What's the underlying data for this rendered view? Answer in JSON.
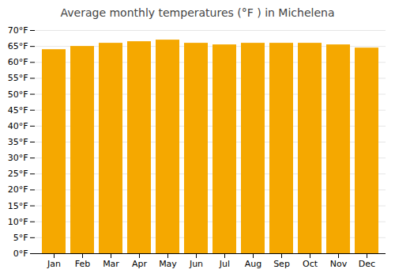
{
  "chart_data": {
    "type": "bar",
    "title": "Average monthly temperatures (°F ) in Michelena",
    "categories": [
      "Jan",
      "Feb",
      "Mar",
      "Apr",
      "May",
      "Jun",
      "Jul",
      "Aug",
      "Sep",
      "Oct",
      "Nov",
      "Dec"
    ],
    "values": [
      64,
      65,
      66,
      66.5,
      67,
      66,
      65.5,
      66,
      66,
      66,
      65.5,
      64.5
    ],
    "color": "#F5A800",
    "ylim": [
      0,
      70
    ],
    "yticks": [
      {
        "value": 0,
        "label": "0°F"
      },
      {
        "value": 5,
        "label": "5°F"
      },
      {
        "value": 10,
        "label": "10°F"
      },
      {
        "value": 15,
        "label": "15°F"
      },
      {
        "value": 20,
        "label": "20°F"
      },
      {
        "value": 25,
        "label": "25°F"
      },
      {
        "value": 30,
        "label": "30°F"
      },
      {
        "value": 35,
        "label": "35°F"
      },
      {
        "value": 40,
        "label": "40°F"
      },
      {
        "value": 45,
        "label": "45°F"
      },
      {
        "value": 50,
        "label": "50°F"
      },
      {
        "value": 55,
        "label": "55°F"
      },
      {
        "value": 60,
        "label": "60°F"
      },
      {
        "value": 65,
        "label": "65°F"
      },
      {
        "value": 70,
        "label": "70°F"
      }
    ],
    "grid": true
  }
}
